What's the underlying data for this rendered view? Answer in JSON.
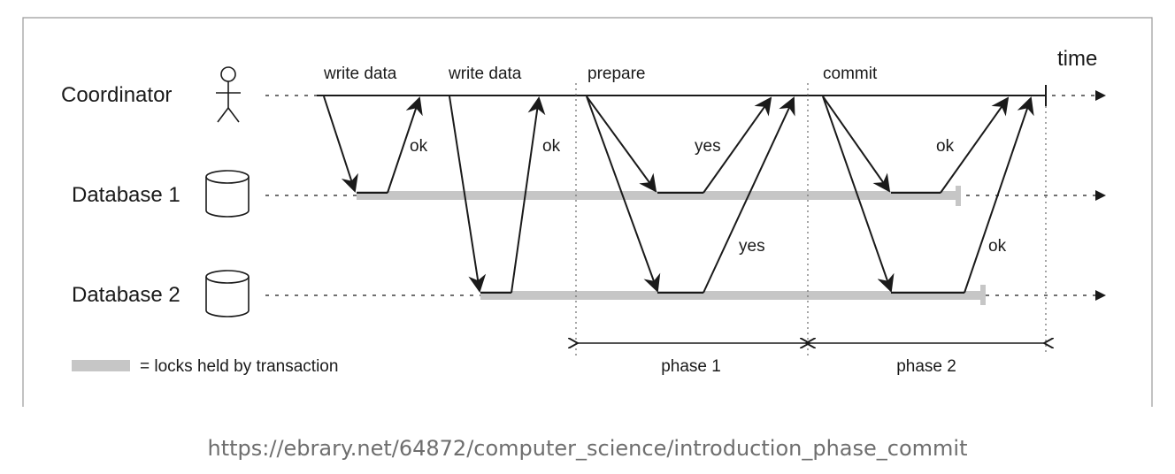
{
  "actors": {
    "coordinator": "Coordinator",
    "db1": "Database 1",
    "db2": "Database 2"
  },
  "labels": {
    "time": "time",
    "write_data_1": "write data",
    "write_data_2": "write data",
    "prepare": "prepare",
    "commit": "commit",
    "ok_db1_write": "ok",
    "ok_db2_write": "ok",
    "yes_db1": "yes",
    "yes_db2": "yes",
    "ok_db1_commit": "ok",
    "ok_db2_commit": "ok",
    "phase1": "phase 1",
    "phase2": "phase 2",
    "legend": "= locks held by transaction"
  },
  "icons": {
    "coordinator": "person-icon",
    "db1": "database-icon",
    "db2": "database-icon"
  },
  "colors": {
    "lock_bar": "#c6c6c6",
    "line": "#1a1a1a"
  },
  "source": "https://ebrary.net/64872/computer_science/introduction_phase_commit"
}
